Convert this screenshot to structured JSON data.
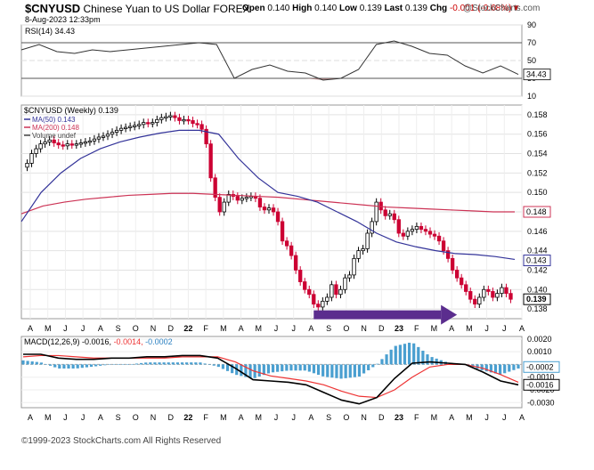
{
  "header": {
    "symbol": "$CNYUSD",
    "name": "Chinese Yuan to US Dollar FOREX",
    "date": "8-Aug-2023 12:33pm",
    "watermark": "@StockCharts.com",
    "stats": {
      "open_label": "Open",
      "open": "0.140",
      "high_label": "High",
      "high": "0.140",
      "low_label": "Low",
      "low": "0.139",
      "last_label": "Last",
      "last": "0.139",
      "chg_label": "Chg",
      "chg": "-0.001 (-0.68%)"
    }
  },
  "footer": {
    "copyright": "©1999-2023 StockCharts.com All Rights Reserved"
  },
  "colors": {
    "up_candle": "#000000",
    "down_candle": "#cc0033",
    "ma50": "#333399",
    "ma200": "#cc3355",
    "macd_line": "#000000",
    "signal_line": "#ee3333",
    "histogram": "#4a9fd0",
    "rsi_fill": "#a07070",
    "arrow": "#5b2d8e"
  },
  "chart_data": [
    {
      "type": "line",
      "panel": "rsi",
      "title": "RSI(14) 34.43",
      "ylim": [
        10,
        90
      ],
      "ticks": [
        "90",
        "70",
        "50",
        "30",
        "10"
      ],
      "current_label": "34.43",
      "x": [
        "2021-04",
        "2021-05",
        "2021-06",
        "2021-07",
        "2021-08",
        "2021-09",
        "2021-10",
        "2021-11",
        "2021-12",
        "2022-01",
        "2022-02",
        "2022-03",
        "2022-04",
        "2022-05",
        "2022-06",
        "2022-07",
        "2022-08",
        "2022-09",
        "2022-10",
        "2022-11",
        "2022-12",
        "2023-01",
        "2023-02",
        "2023-03",
        "2023-04",
        "2023-05",
        "2023-06",
        "2023-07",
        "2023-08"
      ],
      "series": [
        {
          "values": [
            62,
            68,
            60,
            58,
            62,
            60,
            62,
            64,
            66,
            68,
            70,
            68,
            30,
            40,
            45,
            38,
            36,
            28,
            30,
            40,
            68,
            72,
            66,
            58,
            56,
            44,
            36,
            44,
            34.43
          ]
        }
      ]
    },
    {
      "type": "candlestick",
      "panel": "price",
      "title": "$CNYUSD (Weekly) 0.139",
      "legend": [
        "MA(50) 0.143",
        "MA(200) 0.148",
        "Volume undef"
      ],
      "ylim": [
        0.137,
        0.159
      ],
      "ticks": [
        "0.158",
        "0.156",
        "0.154",
        "0.152",
        "0.150",
        "0.148",
        "0.146",
        "0.144",
        "0.142",
        "0.140",
        "0.138"
      ],
      "price_labels": {
        "ma200": "0.148",
        "ma50": "0.143",
        "last": "0.139"
      },
      "xlabels": [
        "A",
        "M",
        "J",
        "J",
        "A",
        "S",
        "O",
        "N",
        "D",
        "22",
        "F",
        "M",
        "A",
        "M",
        "J",
        "J",
        "A",
        "S",
        "O",
        "N",
        "D",
        "23",
        "F",
        "M",
        "A",
        "M",
        "J",
        "J",
        "A"
      ],
      "close": [
        0.153,
        0.154,
        0.1545,
        0.155,
        0.1552,
        0.1554,
        0.1551,
        0.1549,
        0.1548,
        0.155,
        0.1549,
        0.155,
        0.1551,
        0.1552,
        0.1553,
        0.1555,
        0.1557,
        0.1558,
        0.156,
        0.1562,
        0.1564,
        0.1566,
        0.1567,
        0.1568,
        0.1569,
        0.157,
        0.1572,
        0.1571,
        0.1572,
        0.1575,
        0.1577,
        0.1578,
        0.1579,
        0.1577,
        0.1574,
        0.1575,
        0.1574,
        0.1571,
        0.157,
        0.1565,
        0.155,
        0.1515,
        0.1495,
        0.148,
        0.149,
        0.1498,
        0.1496,
        0.1492,
        0.1494,
        0.1495,
        0.1496,
        0.1494,
        0.1485,
        0.1482,
        0.1484,
        0.148,
        0.147,
        0.145,
        0.1445,
        0.1435,
        0.142,
        0.1408,
        0.14,
        0.1395,
        0.1385,
        0.1382,
        0.1388,
        0.1392,
        0.1405,
        0.1395,
        0.14,
        0.1412,
        0.1415,
        0.1432,
        0.144,
        0.1442,
        0.1458,
        0.147,
        0.149,
        0.1482,
        0.1476,
        0.1478,
        0.1472,
        0.1458,
        0.1455,
        0.146,
        0.1462,
        0.1465,
        0.1462,
        0.146,
        0.1457,
        0.1455,
        0.145,
        0.144,
        0.1432,
        0.142,
        0.1412,
        0.1405,
        0.1398,
        0.139,
        0.1385,
        0.1392,
        0.14,
        0.1398,
        0.1392,
        0.1396,
        0.1402,
        0.1396,
        0.139
      ],
      "ma50": [
        0.147,
        0.15,
        0.152,
        0.1535,
        0.1545,
        0.1552,
        0.1557,
        0.1561,
        0.1564,
        0.1564,
        0.156,
        0.1535,
        0.1515,
        0.15,
        0.1496,
        0.149,
        0.148,
        0.147,
        0.1458,
        0.1449,
        0.1444,
        0.144,
        0.1437,
        0.1436,
        0.1434,
        0.1431
      ],
      "ma200": [
        0.1478,
        0.1486,
        0.149,
        0.1493,
        0.1495,
        0.1497,
        0.1498,
        0.1499,
        0.1499,
        0.1498,
        0.1497,
        0.1496,
        0.1495,
        0.1493,
        0.1491,
        0.1489,
        0.1487,
        0.1485,
        0.1484,
        0.1483,
        0.1482,
        0.1481,
        0.148,
        0.148
      ]
    },
    {
      "type": "line",
      "panel": "macd",
      "title": "MACD(12,26,9) -0.0016, -0.0014, -0.0002",
      "title_parts": {
        "label": "MACD(12,26,9)",
        "macd": "-0.0016",
        "signal": "-0.0014",
        "histogram": "-0.0002"
      },
      "ylim": [
        -0.0034,
        0.0022
      ],
      "ticks": [
        "0.0020",
        "0.0010",
        "-0.0010",
        "-0.0020",
        "-0.0030"
      ],
      "price_labels": {
        "histogram": "-0.0002",
        "macd": "-0.0016"
      },
      "xlabels": [
        "A",
        "M",
        "J",
        "J",
        "A",
        "S",
        "O",
        "N",
        "D",
        "22",
        "F",
        "M",
        "A",
        "M",
        "J",
        "J",
        "A",
        "S",
        "O",
        "N",
        "D",
        "23",
        "F",
        "M",
        "A",
        "M",
        "J",
        "J",
        "A"
      ],
      "series": [
        {
          "name": "MACD",
          "values": [
            0.0008,
            0.0008,
            0.0005,
            0.0004,
            0.0004,
            0.0005,
            0.0005,
            0.0006,
            0.0006,
            0.0007,
            0.0007,
            0.0005,
            -0.0003,
            -0.0012,
            -0.0013,
            -0.0014,
            -0.0016,
            -0.0022,
            -0.0028,
            -0.0031,
            -0.0026,
            -0.0011,
            0.0001,
            0.0002,
            0.0001,
            0.0,
            -0.0006,
            -0.0013,
            -0.0016
          ]
        },
        {
          "name": "Signal",
          "values": [
            0.0006,
            0.0007,
            0.0007,
            0.0006,
            0.0005,
            0.0005,
            0.0005,
            0.0005,
            0.0005,
            0.0006,
            0.0006,
            0.0006,
            0.0002,
            -0.0005,
            -0.0009,
            -0.0011,
            -0.0013,
            -0.0016,
            -0.0021,
            -0.0025,
            -0.0026,
            -0.002,
            -0.001,
            -0.0002,
            0.0,
            0.0,
            -0.0003,
            -0.0008,
            -0.0014
          ]
        }
      ]
    }
  ]
}
